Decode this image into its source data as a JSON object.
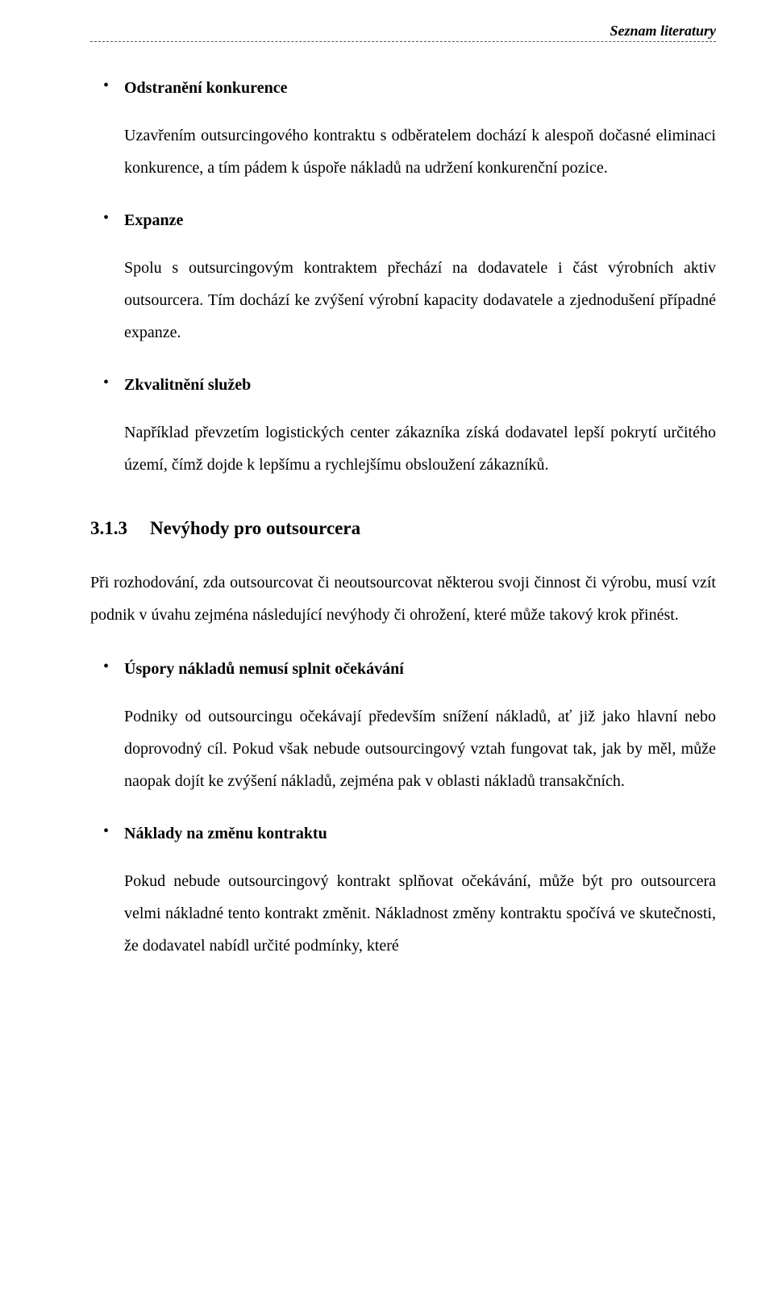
{
  "runningHead": "Seznam literatury",
  "topList": [
    {
      "heading": "Odstranění konkurence",
      "body": "Uzavřením outsurcingového kontraktu s odběratelem dochází k alespoň dočasné eliminaci konkurence, a tím pádem k úspoře nákladů na udržení konkurenční pozice."
    },
    {
      "heading": "Expanze",
      "body": "Spolu s outsurcingovým kontraktem přechází na dodavatele i část výrobních aktiv outsourcera. Tím dochází ke zvýšení výrobní kapacity dodavatele a zjednodušení případné expanze."
    },
    {
      "heading": "Zkvalitnění služeb",
      "body": "Například převzetím logistických center zákazníka získá dodavatel lepší pokrytí určitého území, čímž dojde k lepšímu a rychlejšímu obsloužení zákazníků."
    }
  ],
  "section": {
    "number": "3.1.3",
    "title": "Nevýhody pro outsourcera",
    "intro": "Při rozhodování, zda outsourcovat či neoutsourcovat některou svoji činnost či výrobu, musí vzít podnik v úvahu zejména následující nevýhody či ohrožení, které může takový krok přinést."
  },
  "bottomList": [
    {
      "heading": "Úspory nákladů nemusí splnit očekávání",
      "body": "Podniky od outsourcingu očekávají především snížení nákladů, ať již jako hlavní nebo doprovodný cíl. Pokud však nebude outsourcingový vztah fungovat tak, jak by měl, může naopak dojít ke zvýšení nákladů, zejména pak v oblasti nákladů transakčních."
    },
    {
      "heading": "Náklady na změnu kontraktu",
      "body": "Pokud nebude outsourcingový kontrakt splňovat očekávání, může být pro outsourcera velmi nákladné tento kontrakt změnit. Nákladnost změny kontraktu spočívá ve skutečnosti, že dodavatel nabídl určité podmínky, které"
    }
  ]
}
